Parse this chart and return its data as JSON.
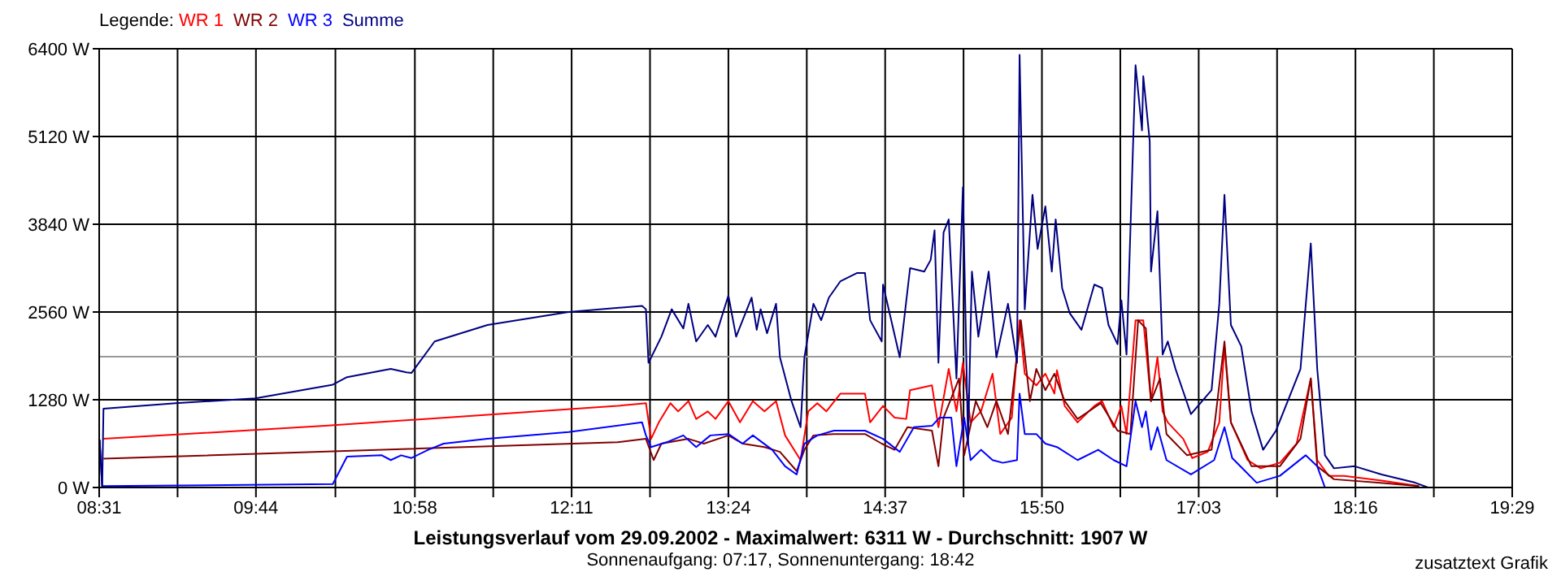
{
  "chart_data": {
    "type": "line",
    "title": "Leistungsverlauf vom 29.09.2002 - Maximalwert: 6311 W - Durchschnitt: 1907 W",
    "subtitle": "Sonnenaufgang: 07:17, Sonnenuntergang: 18:42",
    "annotations": [
      "zusatztext Grafik"
    ],
    "legend_title": "Legende:",
    "legend": "top left",
    "grid": true,
    "xlim": [
      8.5167,
      19.4833
    ],
    "xticks": [
      {
        "value": 8.5167,
        "label": "08:31"
      },
      {
        "value": 9.125,
        "label": null
      },
      {
        "value": 9.7333,
        "label": "09:44"
      },
      {
        "value": 10.35,
        "label": null
      },
      {
        "value": 10.9667,
        "label": "10:58"
      },
      {
        "value": 11.575,
        "label": null
      },
      {
        "value": 12.1833,
        "label": "12:11"
      },
      {
        "value": 12.7917,
        "label": null
      },
      {
        "value": 13.4,
        "label": "13:24"
      },
      {
        "value": 14.0083,
        "label": null
      },
      {
        "value": 14.6167,
        "label": "14:37"
      },
      {
        "value": 15.225,
        "label": null
      },
      {
        "value": 15.8333,
        "label": "15:50"
      },
      {
        "value": 16.4417,
        "label": null
      },
      {
        "value": 17.05,
        "label": "17:03"
      },
      {
        "value": 17.6583,
        "label": null
      },
      {
        "value": 18.2667,
        "label": "18:16"
      },
      {
        "value": 18.875,
        "label": null
      },
      {
        "value": 19.4833,
        "label": "19:29"
      }
    ],
    "ylim": [
      0,
      6400
    ],
    "yticks": [
      {
        "value": 0,
        "label": "0 W"
      },
      {
        "value": 1280,
        "label": "1280 W"
      },
      {
        "value": 2560,
        "label": "2560 W"
      },
      {
        "value": 3840,
        "label": "3840 W"
      },
      {
        "value": 5120,
        "label": "5120 W"
      },
      {
        "value": 6400,
        "label": "6400 W"
      }
    ],
    "ref_lines": [
      {
        "axis": "y",
        "value": 1907,
        "color": "#999999"
      }
    ],
    "series": [
      {
        "name": "WR 1",
        "color": "#ff0000",
        "x": [
          8.55,
          10.27,
          12.54,
          12.76,
          12.8,
          12.86,
          12.95,
          13.01,
          13.09,
          13.15,
          13.24,
          13.3,
          13.4,
          13.49,
          13.59,
          13.68,
          13.77,
          13.84,
          13.96,
          14.02,
          14.09,
          14.16,
          14.27,
          14.46,
          14.5,
          14.6,
          14.69,
          14.78,
          14.81,
          14.98,
          15.03,
          15.11,
          15.17,
          15.22,
          15.28,
          15.36,
          15.45,
          15.51,
          15.6,
          15.66,
          15.7,
          15.79,
          15.86,
          15.93,
          15.95,
          16.01,
          16.11,
          16.24,
          16.3,
          16.39,
          16.45,
          16.49,
          16.56,
          16.62,
          16.68,
          16.73,
          16.77,
          16.81,
          16.93,
          17.0,
          17.12,
          17.21,
          17.25,
          17.3,
          17.43,
          17.53,
          17.68,
          17.81,
          17.92,
          17.97,
          18.06,
          18.18,
          18.47,
          18.76
        ],
        "values": [
          710,
          900,
          1190,
          1230,
          710,
          950,
          1230,
          1110,
          1260,
          1000,
          1110,
          1000,
          1260,
          950,
          1260,
          1110,
          1260,
          760,
          400,
          1110,
          1230,
          1110,
          1370,
          1370,
          950,
          1190,
          1020,
          1000,
          1420,
          1490,
          880,
          1730,
          1110,
          1820,
          950,
          1110,
          1660,
          780,
          1020,
          2440,
          1660,
          1490,
          1660,
          1370,
          1710,
          1190,
          950,
          1190,
          1260,
          880,
          1190,
          780,
          2440,
          2440,
          1260,
          1900,
          1110,
          950,
          710,
          430,
          520,
          950,
          2060,
          950,
          400,
          280,
          360,
          640,
          1590,
          400,
          170,
          170,
          100,
          20
        ]
      },
      {
        "name": "WR 2",
        "color": "#800000",
        "x": [
          8.55,
          12.54,
          12.76,
          12.82,
          12.88,
          13.09,
          13.21,
          13.4,
          13.51,
          13.68,
          13.8,
          13.93,
          13.99,
          14.06,
          14.22,
          14.46,
          14.59,
          14.69,
          14.79,
          14.98,
          15.03,
          15.07,
          15.19,
          15.23,
          15.32,
          15.41,
          15.48,
          15.57,
          15.67,
          15.74,
          15.79,
          15.86,
          15.93,
          16.01,
          16.11,
          16.29,
          16.42,
          16.52,
          16.58,
          16.64,
          16.68,
          16.75,
          16.8,
          16.96,
          17.15,
          17.25,
          17.3,
          17.46,
          17.68,
          17.84,
          17.92,
          17.97,
          18.1,
          18.44,
          18.76
        ],
        "values": [
          420,
          660,
          710,
          400,
          640,
          710,
          640,
          760,
          640,
          590,
          520,
          240,
          550,
          760,
          780,
          780,
          640,
          550,
          880,
          830,
          310,
          1020,
          1590,
          470,
          1260,
          880,
          1260,
          780,
          2440,
          1260,
          1730,
          1420,
          1660,
          1260,
          1000,
          1230,
          830,
          780,
          2440,
          2320,
          1260,
          1590,
          780,
          470,
          550,
          2130,
          950,
          310,
          310,
          710,
          1590,
          310,
          120,
          70,
          20
        ]
      },
      {
        "name": "WR 3",
        "color": "#0000ff",
        "x": [
          8.52,
          8.54,
          8.55,
          10.33,
          10.44,
          10.71,
          10.78,
          10.86,
          10.94,
          11.07,
          11.19,
          11.53,
          12.16,
          12.73,
          12.76,
          12.8,
          12.92,
          13.05,
          13.15,
          13.26,
          13.4,
          13.51,
          13.59,
          13.74,
          13.84,
          13.93,
          13.99,
          14.09,
          14.22,
          14.46,
          14.6,
          14.73,
          14.84,
          14.98,
          15.04,
          15.13,
          15.17,
          15.23,
          15.28,
          15.36,
          15.45,
          15.53,
          15.64,
          15.66,
          15.7,
          15.79,
          15.86,
          15.95,
          16.11,
          16.27,
          16.39,
          16.49,
          16.56,
          16.61,
          16.64,
          16.68,
          16.73,
          16.8,
          16.99,
          17.17,
          17.25,
          17.31,
          17.5,
          17.68,
          17.88,
          17.97,
          18.03
        ],
        "values": [
          700,
          0,
          20,
          50,
          450,
          470,
          400,
          470,
          430,
          550,
          640,
          710,
          810,
          950,
          760,
          590,
          660,
          760,
          590,
          760,
          780,
          640,
          760,
          550,
          310,
          190,
          640,
          760,
          830,
          830,
          710,
          520,
          880,
          900,
          1020,
          1020,
          310,
          1020,
          400,
          550,
          400,
          360,
          400,
          1370,
          780,
          780,
          640,
          590,
          400,
          550,
          400,
          310,
          1260,
          880,
          1110,
          550,
          880,
          400,
          190,
          400,
          880,
          430,
          70,
          170,
          470,
          310,
          0
        ]
      },
      {
        "name": "Summe",
        "color": "#000080",
        "x": [
          8.52,
          8.54,
          8.55,
          9.11,
          9.73,
          10.33,
          10.44,
          10.78,
          10.9,
          10.94,
          11.12,
          11.53,
          12.16,
          12.73,
          12.76,
          12.78,
          12.88,
          12.96,
          13.05,
          13.09,
          13.15,
          13.24,
          13.3,
          13.4,
          13.46,
          13.58,
          13.62,
          13.65,
          13.7,
          13.77,
          13.8,
          13.89,
          13.96,
          13.99,
          14.06,
          14.12,
          14.18,
          14.27,
          14.4,
          14.46,
          14.5,
          14.59,
          14.6,
          14.73,
          14.81,
          14.92,
          14.97,
          15.0,
          15.03,
          15.07,
          15.11,
          15.17,
          15.22,
          15.26,
          15.29,
          15.34,
          15.42,
          15.48,
          15.57,
          15.64,
          15.66,
          15.7,
          15.76,
          15.8,
          15.86,
          15.91,
          15.94,
          15.99,
          16.05,
          16.14,
          16.24,
          16.3,
          16.35,
          16.42,
          16.45,
          16.49,
          16.56,
          16.61,
          16.62,
          16.67,
          16.68,
          16.73,
          16.77,
          16.81,
          16.87,
          16.99,
          17.15,
          17.21,
          17.25,
          17.3,
          17.38,
          17.46,
          17.55,
          17.65,
          17.76,
          17.84,
          17.92,
          17.97,
          18.03,
          18.1,
          18.26,
          18.47,
          18.73,
          18.83
        ],
        "values": [
          700,
          0,
          1150,
          1230,
          1300,
          1500,
          1610,
          1730,
          1680,
          1670,
          2130,
          2370,
          2560,
          2650,
          2600,
          1820,
          2200,
          2600,
          2320,
          2680,
          2130,
          2370,
          2200,
          2800,
          2200,
          2770,
          2300,
          2600,
          2250,
          2680,
          1900,
          1260,
          880,
          1900,
          2680,
          2440,
          2770,
          3010,
          3130,
          3130,
          2440,
          2130,
          2960,
          1900,
          3200,
          3150,
          3320,
          3750,
          1820,
          3720,
          3910,
          1590,
          4380,
          640,
          3150,
          2200,
          3150,
          1900,
          2680,
          1820,
          6311,
          2600,
          4270,
          3480,
          4100,
          3150,
          3910,
          2910,
          2540,
          2300,
          2960,
          2910,
          2370,
          2090,
          2730,
          1940,
          6160,
          5210,
          6000,
          5050,
          3150,
          4030,
          1940,
          2130,
          1730,
          1070,
          1420,
          2680,
          4270,
          2370,
          2060,
          1110,
          550,
          830,
          1350,
          1730,
          3560,
          1730,
          470,
          280,
          310,
          190,
          70,
          0
        ]
      }
    ]
  }
}
